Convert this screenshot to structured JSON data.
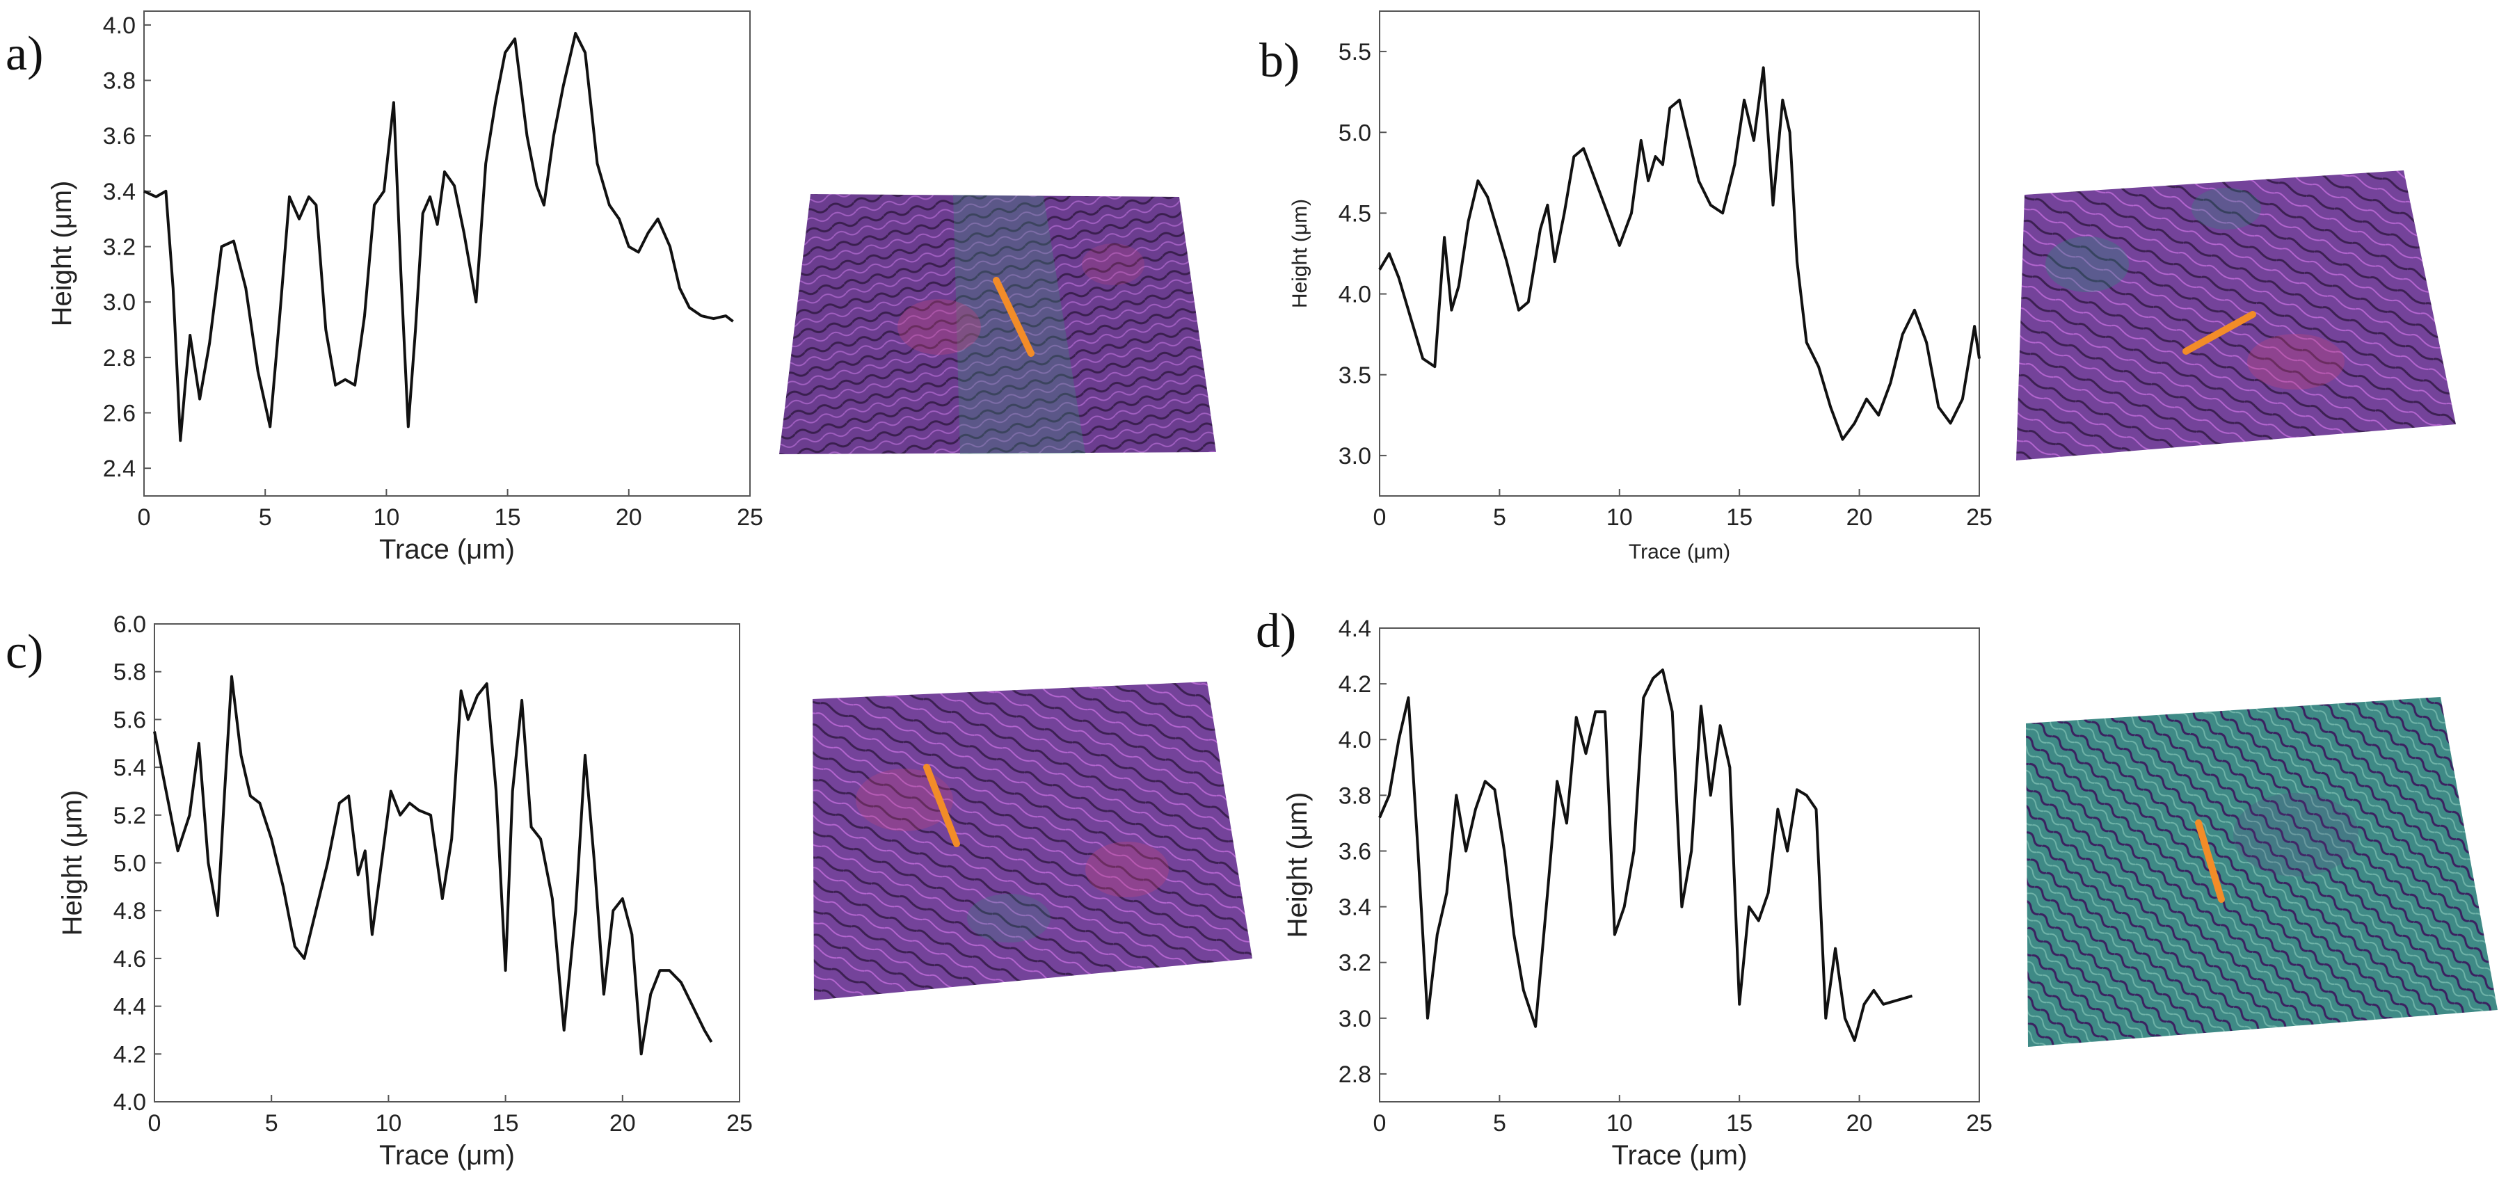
{
  "figure": {
    "colors": {
      "line": "#111111",
      "marker": "#f28c28",
      "map_purple": "#7a3f9a",
      "map_pink": "#c0447a",
      "map_green": "#2f8a7a"
    }
  },
  "chart_data": [
    {
      "panel": "a)",
      "type": "line",
      "xlabel": "Trace (μm)",
      "ylabel": "Height (μm)",
      "xlim": [
        0,
        25
      ],
      "ylim": [
        2.3,
        4.05
      ],
      "xticks": [
        "0",
        "5",
        "10",
        "15",
        "20",
        "25"
      ],
      "yticks": [
        "2.4",
        "2.6",
        "2.8",
        "3.0",
        "3.2",
        "3.4",
        "3.6",
        "3.8",
        "4.0"
      ],
      "x": [
        0,
        0.5,
        0.9,
        1.2,
        1.5,
        1.7,
        1.9,
        2.3,
        2.7,
        3.2,
        3.7,
        4.2,
        4.7,
        5.2,
        5.6,
        6.0,
        6.4,
        6.8,
        7.1,
        7.5,
        7.9,
        8.3,
        8.7,
        9.1,
        9.5,
        9.9,
        10.3,
        10.6,
        10.9,
        11.2,
        11.5,
        11.8,
        12.1,
        12.4,
        12.8,
        13.2,
        13.7,
        14.1,
        14.5,
        14.9,
        15.3,
        15.8,
        16.2,
        16.5,
        16.9,
        17.3,
        17.8,
        18.2,
        18.7,
        19.2,
        19.6,
        20.0,
        20.4,
        20.8,
        21.2,
        21.7,
        22.1,
        22.5,
        23.0,
        23.5,
        24.0,
        24.3
      ],
      "y": [
        3.4,
        3.38,
        3.4,
        3.05,
        2.5,
        2.7,
        2.88,
        2.65,
        2.85,
        3.2,
        3.22,
        3.05,
        2.75,
        2.55,
        2.95,
        3.38,
        3.3,
        3.38,
        3.35,
        2.9,
        2.7,
        2.72,
        2.7,
        2.95,
        3.35,
        3.4,
        3.72,
        3.1,
        2.55,
        2.9,
        3.32,
        3.38,
        3.28,
        3.47,
        3.42,
        3.25,
        3.0,
        3.5,
        3.72,
        3.9,
        3.95,
        3.6,
        3.42,
        3.35,
        3.6,
        3.78,
        3.97,
        3.9,
        3.5,
        3.35,
        3.3,
        3.2,
        3.18,
        3.25,
        3.3,
        3.2,
        3.05,
        2.98,
        2.95,
        2.94,
        2.95,
        2.93
      ]
    },
    {
      "panel": "b)",
      "type": "line",
      "xlabel": "Trace (μm)",
      "ylabel": "Height (μm)",
      "xlim": [
        0,
        25
      ],
      "ylim": [
        2.75,
        5.75
      ],
      "xticks": [
        "0",
        "5",
        "10",
        "15",
        "20",
        "25"
      ],
      "yticks": [
        "3.0",
        "3.5",
        "4.0",
        "4.5",
        "5.0",
        "5.5"
      ],
      "x": [
        0,
        0.4,
        0.8,
        1.3,
        1.8,
        2.3,
        2.7,
        3.0,
        3.3,
        3.7,
        4.1,
        4.5,
        4.9,
        5.3,
        5.8,
        6.2,
        6.7,
        7.0,
        7.3,
        7.7,
        8.1,
        8.5,
        9.0,
        9.5,
        10.0,
        10.5,
        10.9,
        11.2,
        11.5,
        11.8,
        12.1,
        12.5,
        12.9,
        13.3,
        13.8,
        14.3,
        14.8,
        15.2,
        15.6,
        16.0,
        16.4,
        16.8,
        17.1,
        17.4,
        17.8,
        18.3,
        18.8,
        19.3,
        19.8,
        20.3,
        20.8,
        21.3,
        21.8,
        22.3,
        22.8,
        23.3,
        23.8,
        24.3,
        24.8,
        25.0
      ],
      "y": [
        4.15,
        4.25,
        4.1,
        3.85,
        3.6,
        3.55,
        4.35,
        3.9,
        4.05,
        4.45,
        4.7,
        4.6,
        4.4,
        4.2,
        3.9,
        3.95,
        4.4,
        4.55,
        4.2,
        4.5,
        4.85,
        4.9,
        4.7,
        4.5,
        4.3,
        4.5,
        4.95,
        4.7,
        4.85,
        4.8,
        5.15,
        5.2,
        4.95,
        4.7,
        4.55,
        4.5,
        4.8,
        5.2,
        4.95,
        5.4,
        4.55,
        5.2,
        5.0,
        4.2,
        3.7,
        3.55,
        3.3,
        3.1,
        3.2,
        3.35,
        3.25,
        3.45,
        3.75,
        3.9,
        3.7,
        3.3,
        3.2,
        3.35,
        3.8,
        3.6
      ]
    },
    {
      "panel": "c)",
      "type": "line",
      "xlabel": "Trace (μm)",
      "ylabel": "Height (μm)",
      "xlim": [
        0,
        25
      ],
      "ylim": [
        4.0,
        6.0
      ],
      "xticks": [
        "0",
        "5",
        "10",
        "15",
        "20",
        "25"
      ],
      "yticks": [
        "4.0",
        "4.2",
        "4.4",
        "4.6",
        "4.8",
        "5.0",
        "5.2",
        "5.4",
        "5.6",
        "5.8",
        "6.0"
      ],
      "x": [
        0,
        0.5,
        1.0,
        1.5,
        1.9,
        2.3,
        2.7,
        3.0,
        3.3,
        3.7,
        4.1,
        4.5,
        5.0,
        5.5,
        6.0,
        6.4,
        6.9,
        7.4,
        7.9,
        8.3,
        8.7,
        9.0,
        9.3,
        9.7,
        10.1,
        10.5,
        10.9,
        11.3,
        11.8,
        12.3,
        12.7,
        13.1,
        13.4,
        13.8,
        14.2,
        14.6,
        15.0,
        15.3,
        15.7,
        16.1,
        16.5,
        17.0,
        17.5,
        18.0,
        18.4,
        18.8,
        19.2,
        19.6,
        20.0,
        20.4,
        20.8,
        21.2,
        21.6,
        22.0,
        22.5,
        23.0,
        23.5,
        23.8
      ],
      "y": [
        5.55,
        5.3,
        5.05,
        5.2,
        5.5,
        5.0,
        4.78,
        5.3,
        5.78,
        5.45,
        5.28,
        5.25,
        5.1,
        4.9,
        4.65,
        4.6,
        4.8,
        5.0,
        5.25,
        5.28,
        4.95,
        5.05,
        4.7,
        5.0,
        5.3,
        5.2,
        5.25,
        5.22,
        5.2,
        4.85,
        5.1,
        5.72,
        5.6,
        5.7,
        5.75,
        5.3,
        4.55,
        5.3,
        5.68,
        5.15,
        5.1,
        4.85,
        4.3,
        4.8,
        5.45,
        5.0,
        4.45,
        4.8,
        4.85,
        4.7,
        4.2,
        4.45,
        4.55,
        4.55,
        4.5,
        4.4,
        4.3,
        4.25
      ]
    },
    {
      "panel": "d)",
      "type": "line",
      "xlabel": "Trace (μm)",
      "ylabel": "Height (μm)",
      "xlim": [
        0,
        25
      ],
      "ylim": [
        2.7,
        4.4
      ],
      "xticks": [
        "0",
        "5",
        "10",
        "15",
        "20",
        "25"
      ],
      "yticks": [
        "2.8",
        "3.0",
        "3.2",
        "3.4",
        "3.6",
        "3.8",
        "4.0",
        "4.2",
        "4.4"
      ],
      "x": [
        0,
        0.4,
        0.8,
        1.2,
        1.6,
        2.0,
        2.4,
        2.8,
        3.2,
        3.6,
        4.0,
        4.4,
        4.8,
        5.2,
        5.6,
        6.0,
        6.5,
        7.0,
        7.4,
        7.8,
        8.2,
        8.6,
        9.0,
        9.4,
        9.8,
        10.2,
        10.6,
        11.0,
        11.4,
        11.8,
        12.2,
        12.6,
        13.0,
        13.4,
        13.8,
        14.2,
        14.6,
        15.0,
        15.4,
        15.8,
        16.2,
        16.6,
        17.0,
        17.4,
        17.8,
        18.2,
        18.6,
        19.0,
        19.4,
        19.8,
        20.2,
        20.6,
        21.0,
        21.4,
        21.8,
        22.2
      ],
      "y": [
        3.72,
        3.8,
        4.0,
        4.15,
        3.6,
        3.0,
        3.3,
        3.45,
        3.8,
        3.6,
        3.75,
        3.85,
        3.82,
        3.6,
        3.3,
        3.1,
        2.97,
        3.45,
        3.85,
        3.7,
        4.08,
        3.95,
        4.1,
        4.1,
        3.3,
        3.4,
        3.6,
        4.15,
        4.22,
        4.25,
        4.1,
        3.4,
        3.6,
        4.12,
        3.8,
        4.05,
        3.9,
        3.05,
        3.4,
        3.35,
        3.45,
        3.75,
        3.6,
        3.82,
        3.8,
        3.75,
        3.0,
        3.25,
        3.0,
        2.92,
        3.05,
        3.1,
        3.05,
        3.06,
        3.07,
        3.08
      ]
    }
  ]
}
